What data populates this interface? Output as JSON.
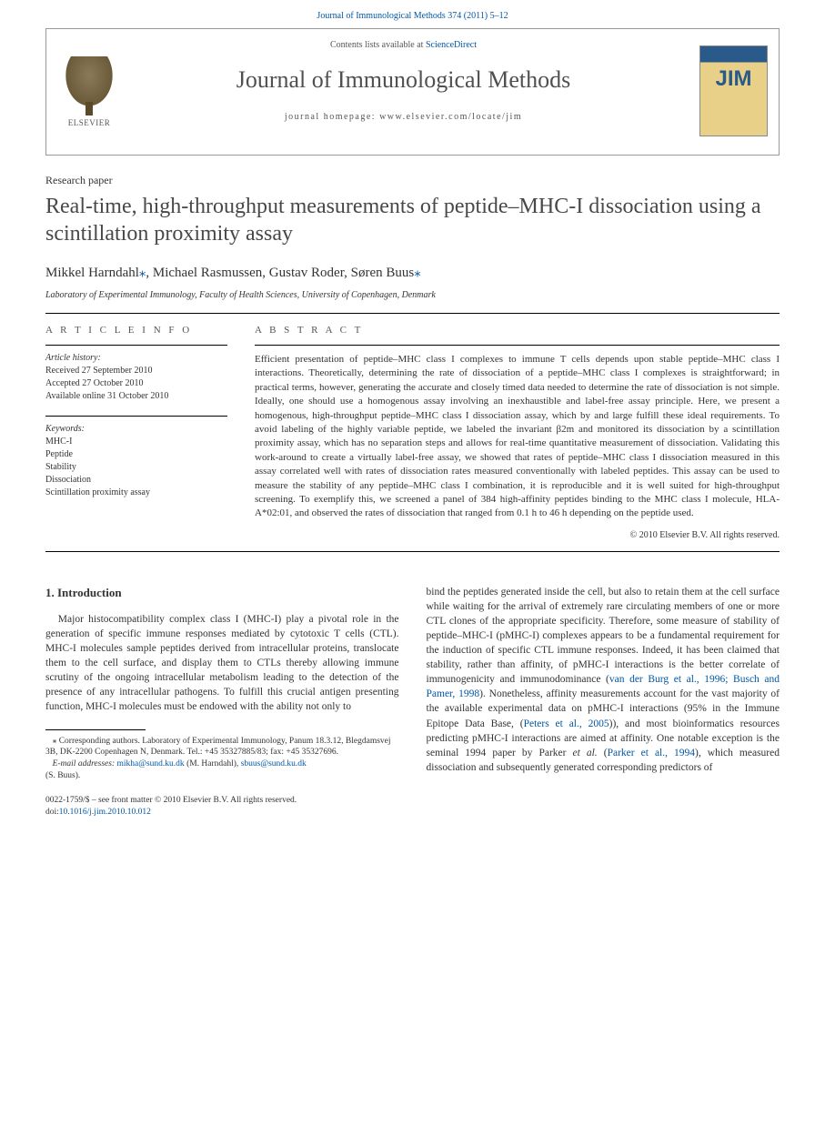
{
  "top_link": {
    "text": "Journal of Immunological Methods 374 (2011) 5–12",
    "href_color": "#0057a4"
  },
  "header": {
    "contents_prefix": "Contents lists available at ",
    "contents_link": "ScienceDirect",
    "journal_name": "Journal of Immunological Methods",
    "homepage_prefix": "journal homepage: ",
    "homepage_url": "www.elsevier.com/locate/jim",
    "elsevier_label": "ELSEVIER",
    "cover_text": "JIM"
  },
  "paper": {
    "type": "Research paper",
    "title": "Real-time, high-throughput measurements of peptide–MHC-I dissociation using a scintillation proximity assay",
    "authors_html": "Mikkel Harndahl",
    "authors": [
      {
        "name": "Mikkel Harndahl",
        "corr": true
      },
      {
        "name": "Michael Rasmussen",
        "corr": false
      },
      {
        "name": "Gustav Roder",
        "corr": false
      },
      {
        "name": "Søren Buus",
        "corr": true
      }
    ],
    "affiliation": "Laboratory of Experimental Immunology, Faculty of Health Sciences, University of Copenhagen, Denmark"
  },
  "article_info": {
    "heading": "A R T I C L E   I N F O",
    "history_label": "Article history:",
    "history": [
      "Received 27 September 2010",
      "Accepted 27 October 2010",
      "Available online 31 October 2010"
    ],
    "keywords_label": "Keywords:",
    "keywords": [
      "MHC-I",
      "Peptide",
      "Stability",
      "Dissociation",
      "Scintillation proximity assay"
    ]
  },
  "abstract": {
    "heading": "A B S T R A C T",
    "body": "Efficient presentation of peptide–MHC class I complexes to immune T cells depends upon stable peptide–MHC class I interactions. Theoretically, determining the rate of dissociation of a peptide–MHC class I complexes is straightforward; in practical terms, however, generating the accurate and closely timed data needed to determine the rate of dissociation is not simple. Ideally, one should use a homogenous assay involving an inexhaustible and label-free assay principle. Here, we present a homogenous, high-throughput peptide–MHC class I dissociation assay, which by and large fulfill these ideal requirements. To avoid labeling of the highly variable peptide, we labeled the invariant β2m and monitored its dissociation by a scintillation proximity assay, which has no separation steps and allows for real-time quantitative measurement of dissociation. Validating this work-around to create a virtually label-free assay, we showed that rates of peptide–MHC class I dissociation measured in this assay correlated well with rates of dissociation rates measured conventionally with labeled peptides. This assay can be used to measure the stability of any peptide–MHC class I combination, it is reproducible and it is well suited for high-throughput screening. To exemplify this, we screened a panel of 384 high-affinity peptides binding to the MHC class I molecule, HLA-A*02:01, and observed the rates of dissociation that ranged from 0.1 h to 46 h depending on the peptide used.",
    "copyright": "© 2010 Elsevier B.V. All rights reserved."
  },
  "intro": {
    "heading": "1. Introduction",
    "col1": "Major histocompatibility complex class I (MHC-I) play a pivotal role in the generation of specific immune responses mediated by cytotoxic T cells (CTL). MHC-I molecules sample peptides derived from intracellular proteins, translocate them to the cell surface, and display them to CTLs thereby allowing immune scrutiny of the ongoing intracellular metabolism leading to the detection of the presence of any intracellular pathogens. To fulfill this crucial antigen presenting function, MHC-I molecules must be endowed with the ability not only to",
    "col2_p1": "bind the peptides generated inside the cell, but also to retain them at the cell surface while waiting for the arrival of extremely rare circulating members of one or more CTL clones of the appropriate specificity. Therefore, some measure of stability of peptide–MHC-I (pMHC-I) complexes appears to be a fundamental requirement for the induction of specific CTL immune responses. Indeed, it has been claimed that stability, rather than affinity, of pMHC-I interactions is the better correlate of immunogenicity and immunodominance (",
    "col2_ref1": "van der Burg et al., 1996; Busch and Pamer, 1998",
    "col2_p2": "). Nonetheless, affinity measurements account for the vast majority of the available experimental data on pMHC-I interactions (95% in the Immune Epitope Data Base, (",
    "col2_ref2": "Peters et al., 2005",
    "col2_p3": ")), and most bioinformatics resources predicting pMHC-I interactions are aimed at affinity. One notable exception is the seminal 1994 paper by Parker ",
    "col2_etal": "et al.",
    "col2_p4": " (",
    "col2_ref3": "Parker et al., 1994",
    "col2_p5": "), which measured dissociation and subsequently generated corresponding predictors of"
  },
  "footnotes": {
    "corr_label": "⁎ Corresponding authors. Laboratory of Experimental Immunology, Panum 18.3.12, Blegdamsvej 3B, DK-2200 Copenhagen N, Denmark. Tel.: +45 35327885/83; fax: +45 35327696.",
    "email_label": "E-mail addresses: ",
    "email1": "mikha@sund.ku.dk",
    "email1_who": " (M. Harndahl), ",
    "email2": "sbuus@sund.ku.dk",
    "email2_who": "(S. Buus)."
  },
  "doi": {
    "line1": "0022-1759/$ – see front matter © 2010 Elsevier B.V. All rights reserved.",
    "line2_prefix": "doi:",
    "line2_link": "10.1016/j.jim.2010.10.012"
  },
  "colors": {
    "link": "#0057a4",
    "text": "#333333",
    "heading_gray": "#555555",
    "rule": "#000000"
  }
}
